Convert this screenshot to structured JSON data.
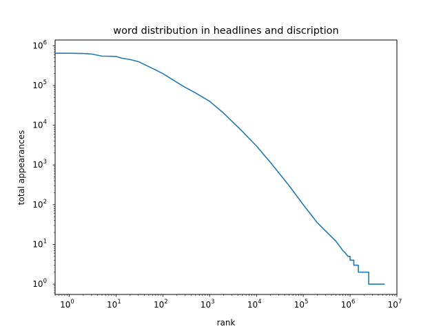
{
  "chart_data": {
    "type": "line",
    "title": "word distribution in headlines and discription",
    "xlabel": "rank",
    "ylabel": "total appearances",
    "xscale": "log",
    "yscale": "log",
    "xlim": [
      0.5,
      10000000
    ],
    "ylim": [
      0.55,
      1400000
    ],
    "xticks": [
      {
        "base": "10",
        "exp": "0",
        "value": 1
      },
      {
        "base": "10",
        "exp": "1",
        "value": 10
      },
      {
        "base": "10",
        "exp": "2",
        "value": 100
      },
      {
        "base": "10",
        "exp": "3",
        "value": 1000
      },
      {
        "base": "10",
        "exp": "4",
        "value": 10000
      },
      {
        "base": "10",
        "exp": "5",
        "value": 100000
      },
      {
        "base": "10",
        "exp": "6",
        "value": 1000000
      },
      {
        "base": "10",
        "exp": "7",
        "value": 10000000
      }
    ],
    "yticks": [
      {
        "base": "10",
        "exp": "0",
        "value": 1
      },
      {
        "base": "10",
        "exp": "1",
        "value": 10
      },
      {
        "base": "10",
        "exp": "2",
        "value": 100
      },
      {
        "base": "10",
        "exp": "3",
        "value": 1000
      },
      {
        "base": "10",
        "exp": "4",
        "value": 10000
      },
      {
        "base": "10",
        "exp": "5",
        "value": 100000
      },
      {
        "base": "10",
        "exp": "6",
        "value": 1000000
      }
    ],
    "grid": false,
    "legend": "none",
    "series": [
      {
        "color": "#1f77b4",
        "x": [
          0.5,
          1,
          2,
          3,
          5,
          10,
          13,
          20,
          30,
          40,
          50,
          60,
          100,
          200,
          300,
          500,
          1000,
          2000,
          5000,
          10000,
          20000,
          50000,
          100000,
          200000,
          500000,
          600000,
          700000,
          800000,
          900000,
          1000000,
          1000000,
          1200000,
          1200000,
          1500000,
          1500000,
          1700000,
          1700000,
          2500000,
          2500000,
          5500000
        ],
        "y": [
          650000,
          650000,
          640000,
          620000,
          550000,
          540000,
          490000,
          450000,
          400000,
          340000,
          300000,
          270000,
          200000,
          120000,
          90000,
          65000,
          40000,
          20000,
          7000,
          3000,
          1150,
          300,
          100,
          35,
          12,
          9,
          7,
          6,
          5,
          5,
          4,
          4,
          3,
          3,
          2,
          2,
          2,
          2,
          1,
          1
        ]
      }
    ]
  }
}
